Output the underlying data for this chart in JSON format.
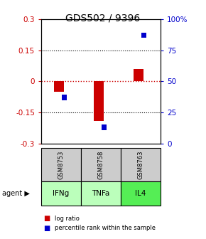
{
  "title": "GDS502 / 9396",
  "samples": [
    "GSM8753",
    "GSM8758",
    "GSM8763"
  ],
  "agents": [
    "IFNg",
    "TNFa",
    "IL4"
  ],
  "log_ratios": [
    -0.05,
    -0.19,
    0.06
  ],
  "percentile_ranks": [
    37,
    13,
    87
  ],
  "ylim_left": [
    -0.3,
    0.3
  ],
  "ylim_right": [
    0,
    100
  ],
  "left_ticks": [
    -0.3,
    -0.15,
    0,
    0.15,
    0.3
  ],
  "right_ticks": [
    0,
    25,
    50,
    75,
    100
  ],
  "right_tick_labels": [
    "0",
    "25",
    "50",
    "75",
    "100%"
  ],
  "red_color": "#cc0000",
  "blue_color": "#0000cc",
  "sample_bg": "#cccccc",
  "agent_colors": [
    "#bbffbb",
    "#bbffbb",
    "#55ee55"
  ],
  "legend_red": "log ratio",
  "legend_blue": "percentile rank within the sample",
  "agent_label": "agent",
  "title_fontsize": 10,
  "tick_fontsize": 7.5,
  "bar_width": 0.25,
  "blue_bar_width": 0.12,
  "blue_bar_height": 0.025
}
